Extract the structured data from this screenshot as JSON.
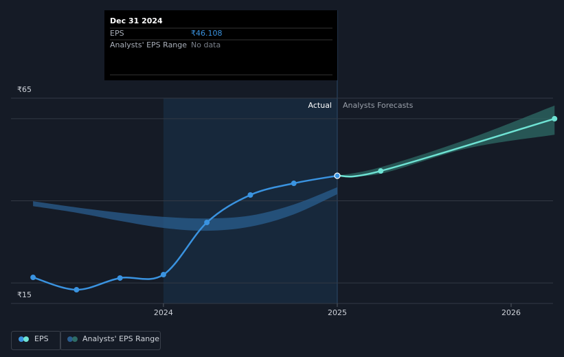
{
  "chart_data": {
    "type": "line",
    "xlim": [
      2023.123,
      2026.241
    ],
    "xticks": [
      2024,
      2025,
      2026
    ],
    "ylim": [
      15,
      65
    ],
    "yticks": [
      {
        "value": 15,
        "label": "₹15"
      },
      {
        "value": 65,
        "label": "₹65"
      }
    ],
    "grid_values": [
      20,
      40,
      60
    ],
    "grid": true,
    "series": [
      {
        "name": "EPS",
        "color": "#3a93e0",
        "x": [
          2023.25,
          2023.5,
          2023.75,
          2024.0,
          2024.25,
          2024.5,
          2024.75,
          2025.0
        ],
        "values": [
          21.35,
          18.34,
          21.19,
          22.02,
          34.73,
          41.42,
          44.26,
          46.108
        ]
      },
      {
        "name": "Analysts' EPS Range",
        "color": "#2a5d8f",
        "x": [
          2023.25,
          2023.5,
          2023.75,
          2024.0,
          2024.25,
          2024.5,
          2024.75,
          2025.0
        ],
        "low": [
          38.7,
          37.1,
          35.1,
          33.4,
          32.7,
          33.7,
          36.7,
          41.6
        ],
        "high": [
          39.9,
          38.4,
          37.1,
          36.1,
          35.7,
          36.4,
          39.1,
          43.3
        ]
      }
    ],
    "forecast": {
      "color": "#6fe3d4",
      "x": [
        2025.0,
        2025.25,
        2026.25
      ],
      "values": [
        46.108,
        47.27,
        60.0
      ]
    },
    "forecast_range": {
      "color": "#2e6b66",
      "x": [
        2025.0,
        2025.25,
        2025.75,
        2026.25
      ],
      "low": [
        46.1,
        46.6,
        52.8,
        56.1
      ],
      "high": [
        46.1,
        48.2,
        55.0,
        63.2
      ]
    },
    "section_labels": [
      "Actual",
      "Analysts Forecasts"
    ],
    "tooltip": {
      "date": "Dec 31 2024",
      "rows": [
        [
          "EPS",
          "₹46.108"
        ],
        [
          "Analysts' EPS Range",
          "No data"
        ]
      ]
    }
  }
}
